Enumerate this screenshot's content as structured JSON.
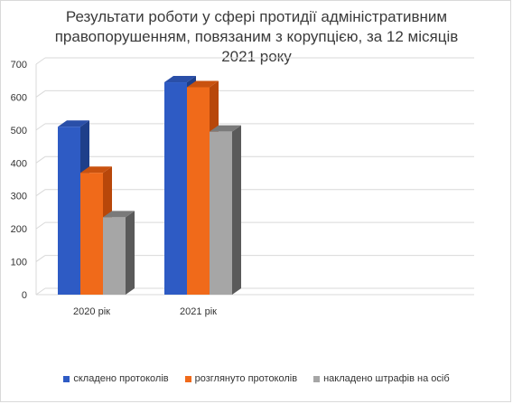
{
  "chart_data": {
    "type": "bar",
    "title_lines": [
      "Результати роботи у сфері протидії адміністративним",
      "правопорушенням, повязаним з корупцією, за 12 місяців",
      "2021 року"
    ],
    "categories": [
      "2020 рік",
      "2021 рік"
    ],
    "series": [
      {
        "name": "складено протоколів",
        "values": [
          510,
          645
        ]
      },
      {
        "name": "розглянуто протоколів",
        "values": [
          370,
          630
        ]
      },
      {
        "name": "накладено штрафів на осіб",
        "values": [
          235,
          495
        ]
      }
    ],
    "ylim": [
      0,
      700
    ],
    "yticks": [
      0,
      100,
      200,
      300,
      400,
      500,
      600,
      700
    ],
    "grid": true,
    "legend_position": "bottom",
    "colors": {
      "series": [
        "#2e5bc4",
        "#f06a1a",
        "#a6a6a6"
      ],
      "series_dark": [
        "#1e3f8a",
        "#b8470a",
        "#5a5a5a"
      ],
      "series_top": [
        "#2a4fa8",
        "#c9520f",
        "#7a7a7a"
      ],
      "grid": "#d9d9d9"
    }
  }
}
